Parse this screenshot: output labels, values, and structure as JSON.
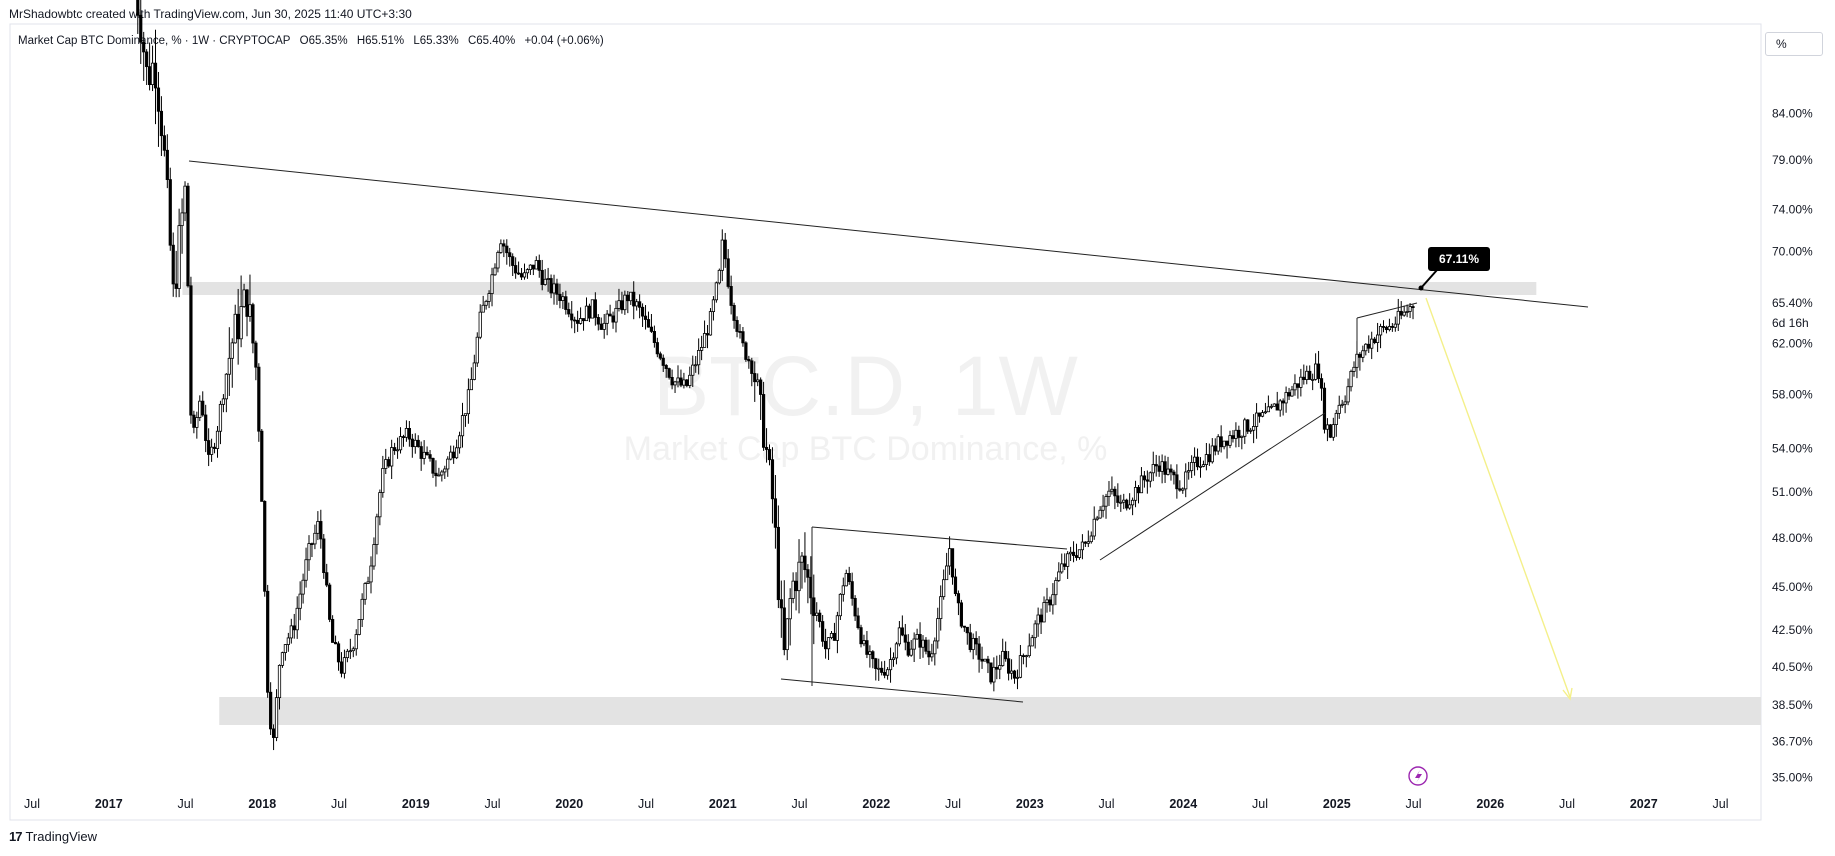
{
  "header": {
    "credit": "MrShadowbtc created with TradingView.com, Jun 30, 2025 11:40 UTC+3:30"
  },
  "symbol_bar": {
    "name": "Market Cap BTC Dominance, % · 1W · CRYPTOCAP",
    "open": "O65.35%",
    "high": "H65.51%",
    "low": "L65.33%",
    "close": "C65.40%",
    "change": "+0.04 (+0.06%)"
  },
  "scale_button": "%",
  "watermark": {
    "ticker": "BTC.D, 1W",
    "description": "Market Cap BTC Dominance, %"
  },
  "footer": {
    "brand": "TradingView"
  },
  "colors": {
    "candle": "#000000",
    "zone": "#e3e3e3",
    "projection": "#f4f08a",
    "badge": "#000000",
    "lightning": "#9c27b0"
  },
  "chart_data": {
    "type": "candlestick",
    "title": "Market Cap BTC Dominance, % · 1W · CRYPTOCAP",
    "interval": "1W",
    "x_ticks": [
      "Jul",
      "2017",
      "Jul",
      "2018",
      "Jul",
      "2019",
      "Jul",
      "2020",
      "Jul",
      "2021",
      "Jul",
      "2022",
      "Jul",
      "2023",
      "Jul",
      "2024",
      "Jul",
      "2025",
      "Jul",
      "2026",
      "Jul",
      "2027",
      "Jul"
    ],
    "x_tick_dates": [
      2016.5,
      2017.0,
      2017.5,
      2018.0,
      2018.5,
      2019.0,
      2019.5,
      2020.0,
      2020.5,
      2021.0,
      2021.5,
      2022.0,
      2022.5,
      2023.0,
      2023.5,
      2024.0,
      2024.5,
      2025.0,
      2025.5,
      2026.0,
      2026.5,
      2027.0,
      2027.5
    ],
    "y_ticks": [
      "84.00%",
      "79.00%",
      "74.00%",
      "70.00%",
      "65.40%",
      "62.00%",
      "58.00%",
      "54.00%",
      "51.00%",
      "48.00%",
      "45.00%",
      "42.50%",
      "40.50%",
      "38.50%",
      "36.70%",
      "35.00%"
    ],
    "y_tick_values": [
      84,
      79,
      74,
      70,
      65.4,
      62,
      58,
      54,
      51,
      48,
      45,
      42.5,
      40.5,
      38.5,
      36.7,
      35
    ],
    "y_scale": "log",
    "last_price": {
      "label": "65.40%",
      "value": 65.4,
      "countdown": "6d 16h"
    },
    "callout": {
      "label": "67.11%",
      "value": 67.11,
      "date": 2025.5
    },
    "path": [
      [
        2017.17,
        99.0
      ],
      [
        2017.2,
        96.0
      ],
      [
        2017.25,
        88.0
      ],
      [
        2017.3,
        90.0
      ],
      [
        2017.35,
        82.0
      ],
      [
        2017.42,
        66.0
      ],
      [
        2017.5,
        76.0
      ],
      [
        2017.54,
        54.0
      ],
      [
        2017.6,
        58.0
      ],
      [
        2017.65,
        53.0
      ],
      [
        2017.7,
        55.0
      ],
      [
        2017.8,
        62.0
      ],
      [
        2017.9,
        66.0
      ],
      [
        2017.96,
        60.0
      ],
      [
        2018.0,
        50.0
      ],
      [
        2018.03,
        40.0
      ],
      [
        2018.07,
        36.3
      ],
      [
        2018.12,
        41.5
      ],
      [
        2018.2,
        42.5
      ],
      [
        2018.3,
        47.0
      ],
      [
        2018.37,
        49.0
      ],
      [
        2018.45,
        42.0
      ],
      [
        2018.52,
        40.3
      ],
      [
        2018.6,
        42.0
      ],
      [
        2018.7,
        46.0
      ],
      [
        2018.78,
        52.0
      ],
      [
        2018.85,
        54.0
      ],
      [
        2018.95,
        55.0
      ],
      [
        2019.05,
        53.5
      ],
      [
        2019.15,
        52.0
      ],
      [
        2019.25,
        54.0
      ],
      [
        2019.35,
        58.0
      ],
      [
        2019.42,
        64.0
      ],
      [
        2019.5,
        68.0
      ],
      [
        2019.55,
        71.5
      ],
      [
        2019.62,
        69.0
      ],
      [
        2019.7,
        67.5
      ],
      [
        2019.78,
        69.0
      ],
      [
        2019.85,
        67.0
      ],
      [
        2019.95,
        66.0
      ],
      [
        2020.05,
        64.0
      ],
      [
        2020.15,
        65.0
      ],
      [
        2020.22,
        63.5
      ],
      [
        2020.3,
        64.5
      ],
      [
        2020.38,
        66.0
      ],
      [
        2020.45,
        65.0
      ],
      [
        2020.52,
        63.0
      ],
      [
        2020.6,
        61.0
      ],
      [
        2020.68,
        59.0
      ],
      [
        2020.76,
        58.5
      ],
      [
        2020.84,
        61.0
      ],
      [
        2020.92,
        64.0
      ],
      [
        2020.98,
        68.0
      ],
      [
        2021.0,
        71.0
      ],
      [
        2021.05,
        66.0
      ],
      [
        2021.12,
        62.0
      ],
      [
        2021.2,
        60.0
      ],
      [
        2021.27,
        55.0
      ],
      [
        2021.33,
        50.0
      ],
      [
        2021.37,
        44.0
      ],
      [
        2021.4,
        41.0
      ],
      [
        2021.45,
        45.0
      ],
      [
        2021.52,
        46.5
      ],
      [
        2021.6,
        44.0
      ],
      [
        2021.67,
        41.5
      ],
      [
        2021.72,
        42.0
      ],
      [
        2021.8,
        46.0
      ],
      [
        2021.85,
        44.0
      ],
      [
        2021.92,
        41.5
      ],
      [
        2022.0,
        40.2
      ],
      [
        2022.08,
        40.5
      ],
      [
        2022.15,
        42.5
      ],
      [
        2022.2,
        41.5
      ],
      [
        2022.28,
        42.0
      ],
      [
        2022.35,
        41.0
      ],
      [
        2022.42,
        44.0
      ],
      [
        2022.48,
        47.5
      ],
      [
        2022.52,
        44.0
      ],
      [
        2022.6,
        42.0
      ],
      [
        2022.68,
        41.0
      ],
      [
        2022.75,
        40.0
      ],
      [
        2022.82,
        41.0
      ],
      [
        2022.9,
        40.0
      ],
      [
        2022.98,
        41.5
      ],
      [
        2023.05,
        43.0
      ],
      [
        2023.12,
        44.0
      ],
      [
        2023.2,
        46.0
      ],
      [
        2023.28,
        47.0
      ],
      [
        2023.36,
        47.5
      ],
      [
        2023.45,
        50.0
      ],
      [
        2023.52,
        51.0
      ],
      [
        2023.6,
        50.0
      ],
      [
        2023.68,
        51.0
      ],
      [
        2023.76,
        52.0
      ],
      [
        2023.84,
        53.0
      ],
      [
        2023.92,
        52.0
      ],
      [
        2024.0,
        51.5
      ],
      [
        2024.08,
        53.0
      ],
      [
        2024.16,
        53.5
      ],
      [
        2024.24,
        54.5
      ],
      [
        2024.32,
        55.0
      ],
      [
        2024.4,
        55.5
      ],
      [
        2024.48,
        56.0
      ],
      [
        2024.56,
        56.5
      ],
      [
        2024.64,
        57.5
      ],
      [
        2024.72,
        58.5
      ],
      [
        2024.8,
        59.5
      ],
      [
        2024.88,
        60.0
      ],
      [
        2024.92,
        56.0
      ],
      [
        2024.96,
        55.0
      ],
      [
        2025.0,
        57.0
      ],
      [
        2025.06,
        58.0
      ],
      [
        2025.12,
        60.5
      ],
      [
        2025.2,
        62.0
      ],
      [
        2025.28,
        63.0
      ],
      [
        2025.36,
        63.5
      ],
      [
        2025.44,
        64.5
      ],
      [
        2025.5,
        65.4
      ]
    ]
  }
}
